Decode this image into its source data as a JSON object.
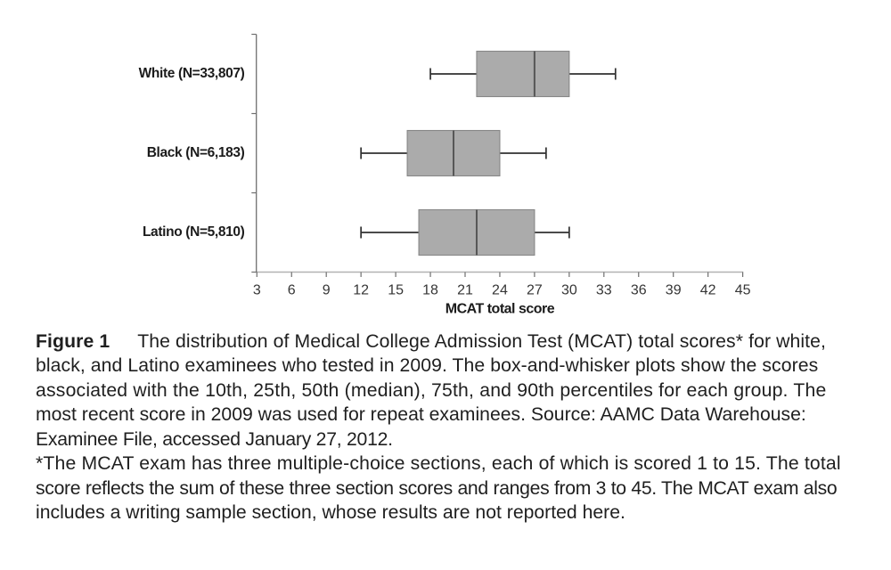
{
  "page": {
    "background": "#ffffff"
  },
  "chart_data": {
    "type": "boxplot",
    "orientation": "horizontal",
    "title": "",
    "xlabel": "MCAT total score",
    "ylabel": "",
    "xlim": [
      3,
      45
    ],
    "xticks": [
      3,
      6,
      9,
      12,
      15,
      18,
      21,
      24,
      27,
      30,
      33,
      36,
      39,
      42,
      45
    ],
    "grid": "off",
    "legend": "none",
    "percentiles_shown": [
      "10th",
      "25th",
      "50th (median)",
      "75th",
      "90th"
    ],
    "groups": [
      {
        "label": "White (N=33,807)",
        "n": 33807,
        "p10": 18,
        "p25": 22,
        "p50": 27,
        "p75": 30,
        "p90": 34
      },
      {
        "label": "Black (N=6,183)",
        "n": 6183,
        "p10": 12,
        "p25": 16,
        "p50": 20,
        "p75": 24,
        "p90": 28
      },
      {
        "label": "Latino (N=5,810)",
        "n": 5810,
        "p10": 12,
        "p25": 17,
        "p50": 22,
        "p75": 27,
        "p90": 30
      }
    ],
    "colors": {
      "box_fill": "#ababab",
      "box_border": "#878787",
      "median_line": "#565656",
      "whisker": "#303030",
      "value_axis_line": "#b3b3b3",
      "category_axis_line": "#6f6f6f",
      "tick_mark": "#6f6f6f",
      "tick_label": "#363636",
      "category_label": "#1b1b1b",
      "axis_title": "#1b1b1b",
      "background": "#ffffff"
    }
  },
  "caption": {
    "label": "Figure 1",
    "lines_main": [
      "The distribution of Medical College Admission Test (MCAT) total scores* for white,",
      "black, and Latino examinees who tested in 2009. The box-and-whisker plots show the scores",
      "associated with the 10th, 25th, 50th (median), 75th, and 90th percentiles for each group. The",
      "most recent score in 2009 was used for repeat examinees. Source: AAMC Data Warehouse:",
      "Examinee File, accessed January 27, 2012."
    ],
    "lines_footnote": [
      "*The MCAT exam has three multiple-choice sections, each of which is scored 1 to 15. The total",
      "score reflects the sum of these three section scores and ranges from 3 to 45. The MCAT exam also",
      "includes a writing sample section, whose results are not reported here."
    ]
  }
}
